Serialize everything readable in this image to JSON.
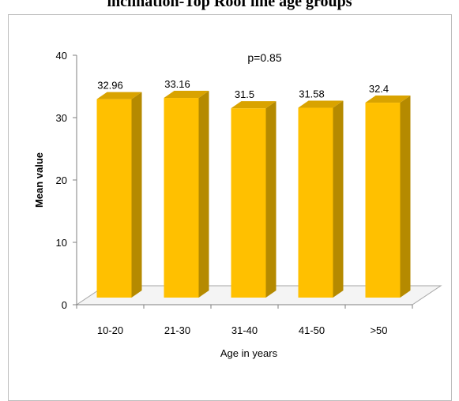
{
  "page_title": "inclination-Top Roof line age groups",
  "annotation": "p=0.85",
  "chart_data": {
    "type": "bar",
    "categories": [
      "10-20",
      "21-30",
      "31-40",
      "41-50",
      ">50"
    ],
    "values": [
      32.96,
      33.16,
      31.5,
      31.58,
      32.4
    ],
    "value_labels": [
      "32.96",
      "33.16",
      "31.5",
      "31.58",
      "32.4"
    ],
    "xlabel": "Age in years",
    "ylabel": "Mean value",
    "ylim": [
      0,
      40
    ],
    "yticks": [
      "0",
      "10",
      "20",
      "30",
      "40"
    ],
    "grid": false,
    "legend": "none",
    "style": "3d-column",
    "colors": {
      "bar_front": "#FFC000",
      "bar_side": "#B58A00",
      "bar_top": "#D9A300",
      "floor": "#d9d9d9"
    }
  }
}
